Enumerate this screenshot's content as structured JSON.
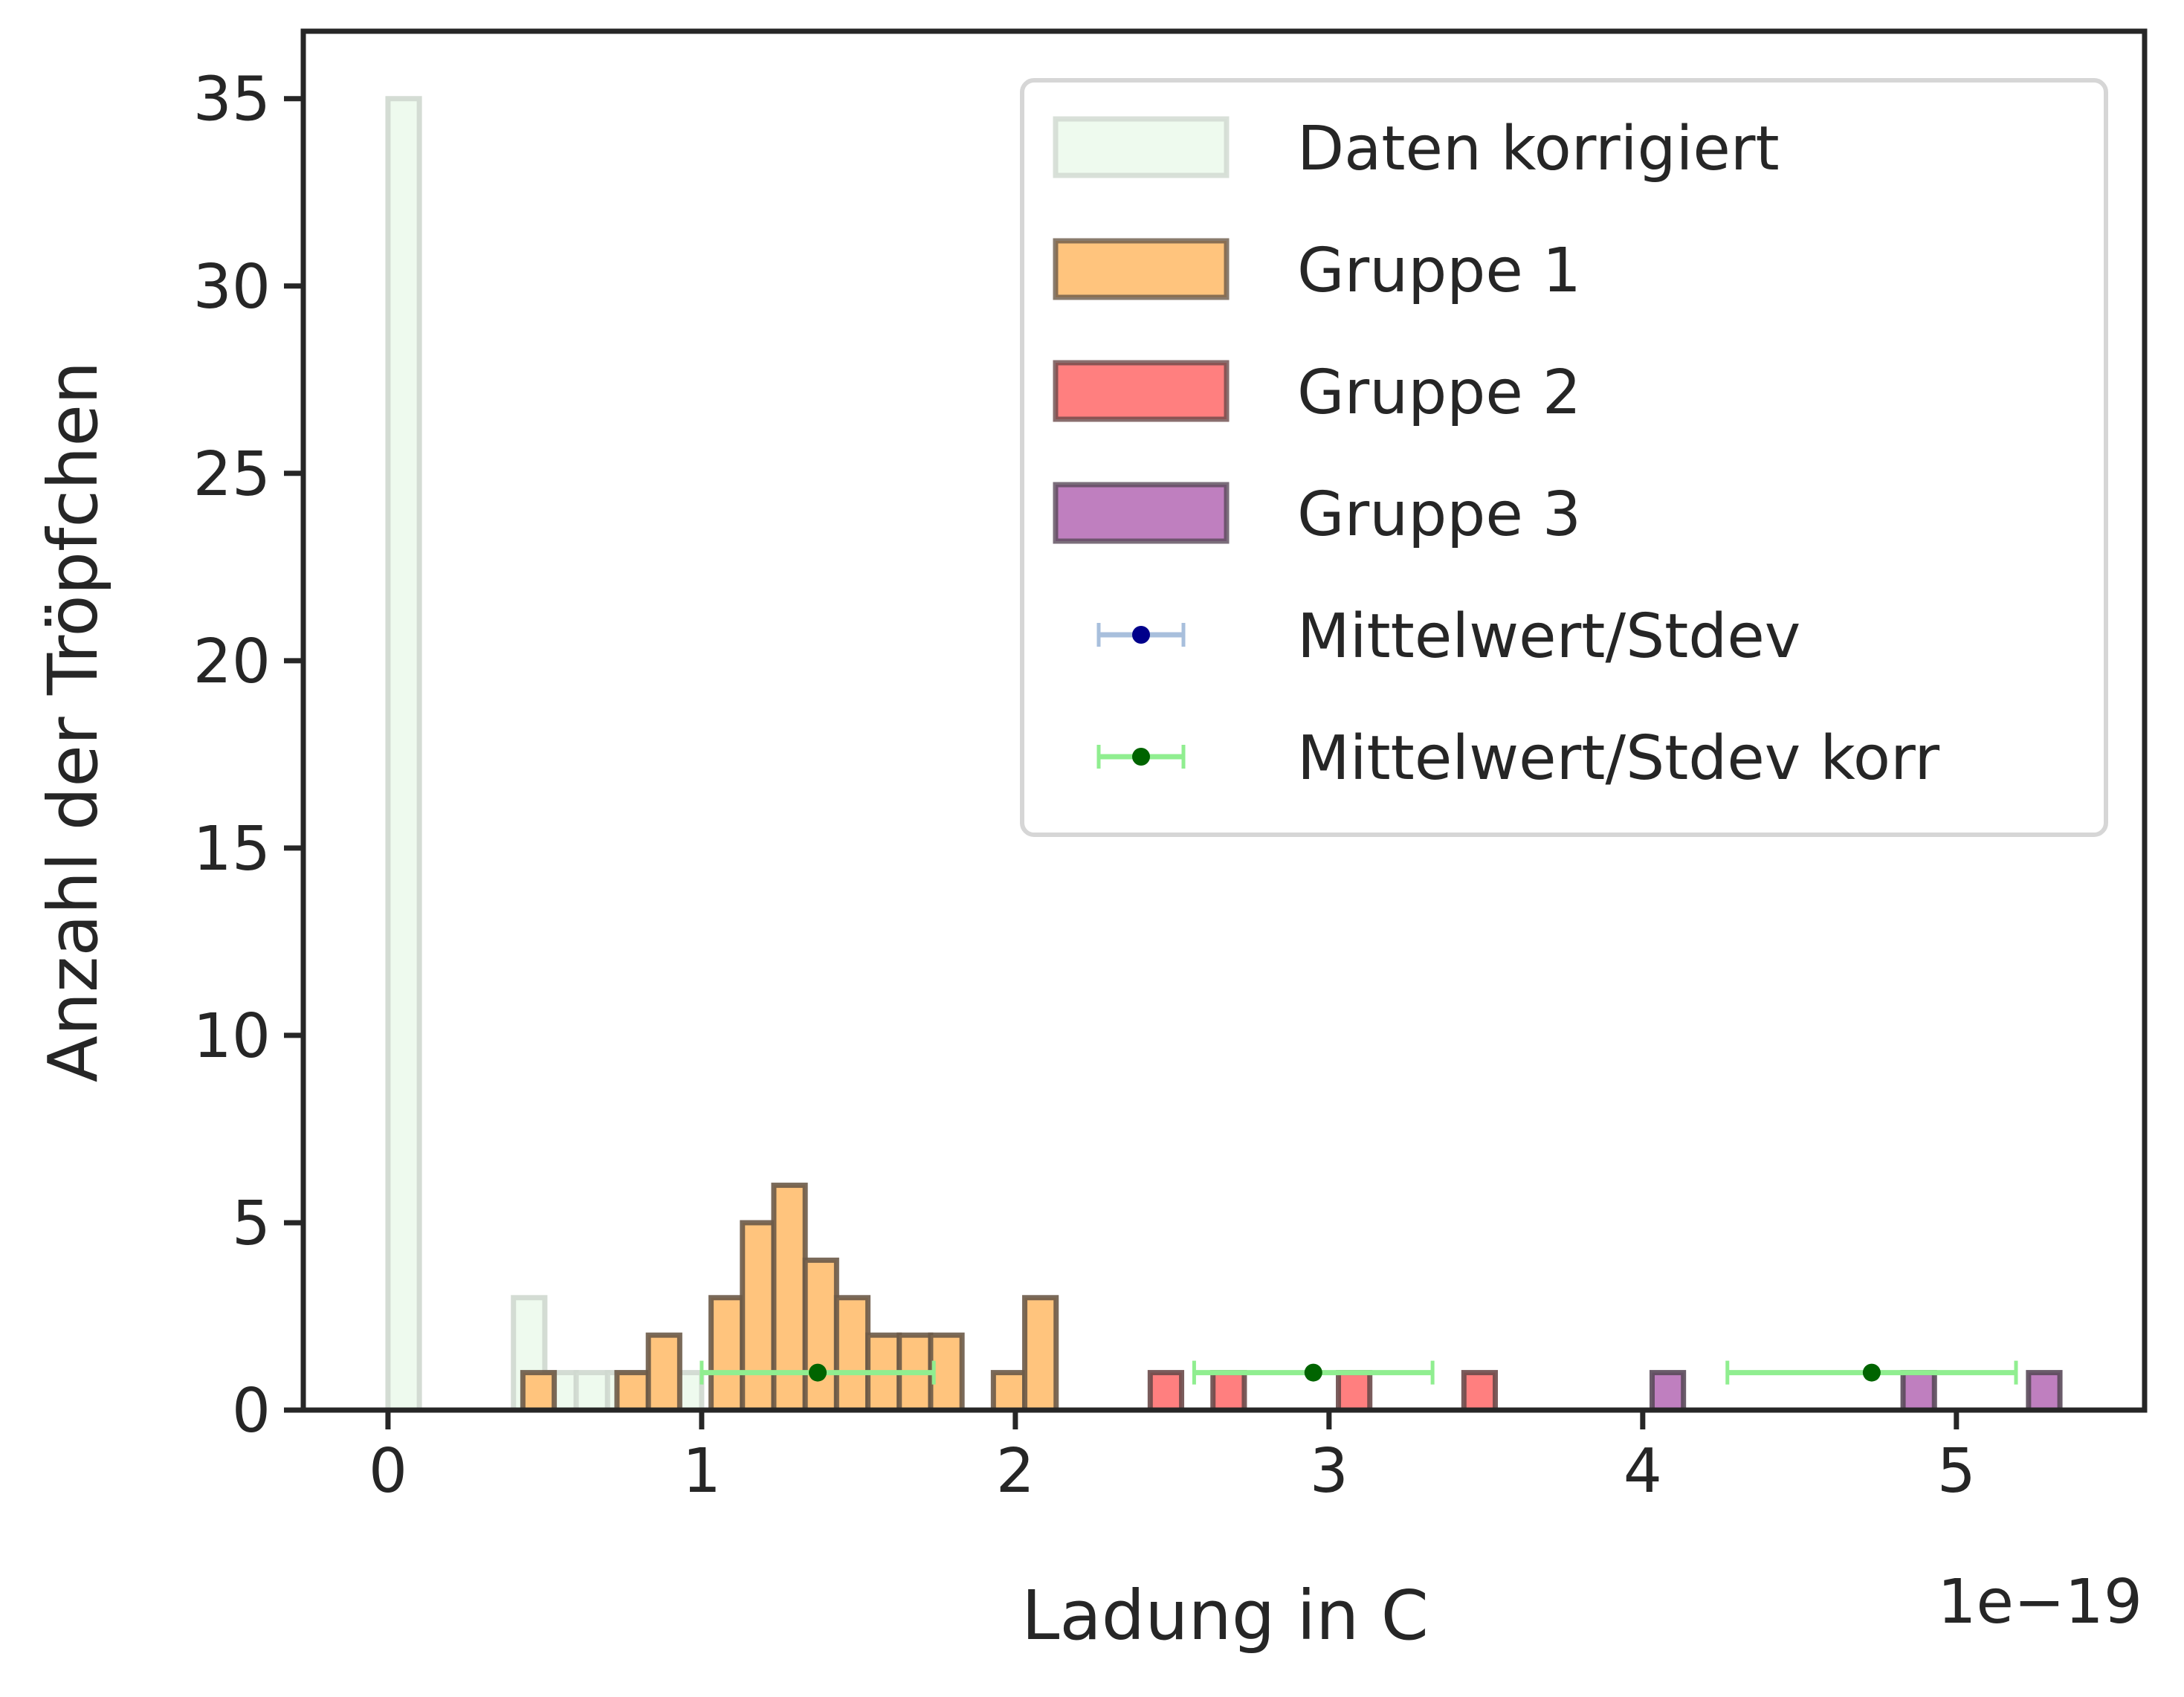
{
  "chart_data": {
    "type": "bar",
    "xlabel": "Ladung in C",
    "ylabel": "Anzahl der Tröpfchen",
    "x_offset_label": "1e−19",
    "xlim": [
      -0.27,
      5.6
    ],
    "ylim": [
      0,
      36.8
    ],
    "xticks": [
      0,
      1,
      2,
      3,
      4,
      5
    ],
    "xtick_labels": [
      "0",
      "1",
      "2",
      "3",
      "4",
      "5"
    ],
    "yticks": [
      0,
      5,
      10,
      15,
      20,
      25,
      30,
      35
    ],
    "ytick_labels": [
      "0",
      "5",
      "10",
      "15",
      "20",
      "25",
      "30",
      "35"
    ],
    "bin_width": 0.1,
    "grid": false,
    "legend_position": "top-right",
    "series": [
      {
        "name": "Daten korrigiert",
        "kind": "hist",
        "color": "#eefaee",
        "edge_color": "#cfd8cf",
        "bins": [
          [
            0.0,
            35
          ],
          [
            0.4,
            3
          ],
          [
            0.5,
            1
          ],
          [
            0.6,
            1
          ],
          [
            0.7,
            1
          ],
          [
            0.8,
            1
          ],
          [
            0.9,
            1
          ]
        ]
      },
      {
        "name": "Gruppe 1",
        "kind": "hist",
        "color": "#ffc47d",
        "edge_color": "#6b5a48",
        "bins": [
          [
            0.43,
            1
          ],
          [
            0.73,
            1
          ],
          [
            0.83,
            2
          ],
          [
            1.03,
            3
          ],
          [
            1.13,
            5
          ],
          [
            1.23,
            6
          ],
          [
            1.33,
            4
          ],
          [
            1.43,
            3
          ],
          [
            1.53,
            2
          ],
          [
            1.63,
            2
          ],
          [
            1.73,
            2
          ],
          [
            1.93,
            1
          ],
          [
            2.03,
            3
          ]
        ]
      },
      {
        "name": "Gruppe 2",
        "kind": "hist",
        "color": "#ff7f7f",
        "edge_color": "#6b4a4a",
        "bins": [
          [
            2.43,
            1
          ],
          [
            2.63,
            1
          ],
          [
            3.03,
            1
          ],
          [
            3.43,
            1
          ]
        ]
      },
      {
        "name": "Gruppe 3",
        "kind": "hist",
        "color": "#bf7fbf",
        "edge_color": "#5a4a5a",
        "bins": [
          [
            4.03,
            1
          ],
          [
            4.83,
            1
          ],
          [
            5.23,
            1
          ]
        ]
      },
      {
        "name": "Mittelwert/Stdev",
        "kind": "errorbar",
        "line_color": "#a8bfdc",
        "marker_color": "#00008b",
        "points": []
      },
      {
        "name": "Mittelwert/Stdev korr",
        "kind": "errorbar",
        "line_color": "#90ee90",
        "marker_color": "#006400",
        "points": [
          {
            "x": 1.37,
            "y": 1,
            "xerr": 0.37
          },
          {
            "x": 2.95,
            "y": 1,
            "xerr": 0.38
          },
          {
            "x": 4.73,
            "y": 1,
            "xerr": 0.46
          }
        ]
      }
    ]
  }
}
